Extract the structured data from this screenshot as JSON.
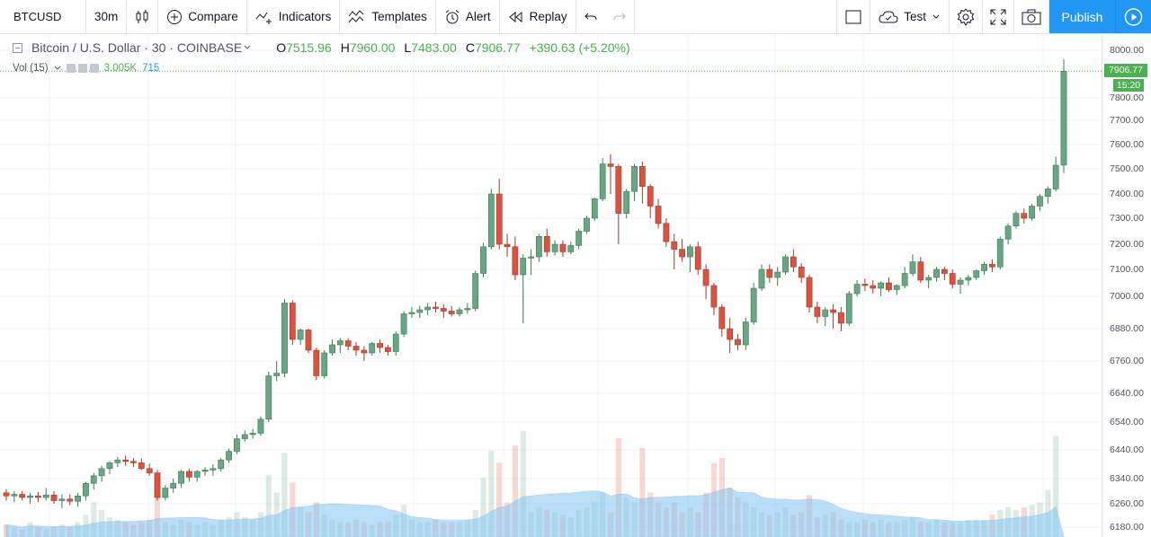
{
  "toolbar": {
    "symbol": "BTCUSD",
    "interval": "30m",
    "compare": "Compare",
    "indicators": "Indicators",
    "templates": "Templates",
    "alert": "Alert",
    "replay": "Replay",
    "layout_name": "Test",
    "publish": "Publish"
  },
  "legend": {
    "title": "Bitcoin / U.S. Dollar · 30 · COINBASE",
    "open_key": "O",
    "open": "7515.96",
    "high_key": "H",
    "high": "7960.00",
    "low_key": "L",
    "low": "7483.00",
    "close_key": "C",
    "close": "7906.77",
    "change": "+390.63 (+5.20%)"
  },
  "volume_legend": {
    "name": "Vol (15)",
    "value": "3.005K",
    "ma": "715"
  },
  "price_axis": {
    "ticks": [
      "8000.00",
      "7900.00",
      "7800.00",
      "7700.00",
      "7600.00",
      "7500.00",
      "7400.00",
      "7300.00",
      "7200.00",
      "7100.00",
      "7000.00",
      "6880.00",
      "6760.00",
      "6640.00",
      "6540.00",
      "6440.00",
      "6340.00",
      "6260.00",
      "6180.00"
    ],
    "last_price": "7906.77",
    "countdown": "15:20"
  },
  "colors": {
    "up": "#6ba583",
    "down": "#d75442",
    "volume_ma": "#85c6f3",
    "grid": "#f0f3fa",
    "accent": "#2196f3"
  },
  "chart_data": {
    "type": "candlestick",
    "title": "Bitcoin / U.S. Dollar · 30 · COINBASE",
    "ylim": [
      6180,
      8000
    ],
    "candles": [
      [
        6295,
        6305,
        6270,
        6285
      ],
      [
        6285,
        6300,
        6265,
        6290
      ],
      [
        6290,
        6300,
        6270,
        6280
      ],
      [
        6280,
        6295,
        6260,
        6285
      ],
      [
        6285,
        6298,
        6265,
        6280
      ],
      [
        6280,
        6310,
        6270,
        6288
      ],
      [
        6288,
        6300,
        6260,
        6270
      ],
      [
        6270,
        6290,
        6245,
        6275
      ],
      [
        6275,
        6290,
        6255,
        6268
      ],
      [
        6268,
        6295,
        6250,
        6285
      ],
      [
        6285,
        6330,
        6270,
        6325
      ],
      [
        6325,
        6360,
        6305,
        6350
      ],
      [
        6350,
        6385,
        6330,
        6375
      ],
      [
        6375,
        6400,
        6355,
        6395
      ],
      [
        6395,
        6415,
        6380,
        6405
      ],
      [
        6405,
        6420,
        6385,
        6400
      ],
      [
        6400,
        6412,
        6380,
        6395
      ],
      [
        6395,
        6410,
        6370,
        6375
      ],
      [
        6375,
        6392,
        6350,
        6360
      ],
      [
        6360,
        6370,
        6270,
        6280
      ],
      [
        6280,
        6320,
        6270,
        6310
      ],
      [
        6310,
        6340,
        6295,
        6325
      ],
      [
        6325,
        6370,
        6310,
        6365
      ],
      [
        6365,
        6375,
        6330,
        6345
      ],
      [
        6345,
        6370,
        6330,
        6365
      ],
      [
        6365,
        6380,
        6350,
        6370
      ],
      [
        6370,
        6390,
        6350,
        6375
      ],
      [
        6375,
        6412,
        6365,
        6405
      ],
      [
        6405,
        6445,
        6395,
        6435
      ],
      [
        6435,
        6495,
        6425,
        6480
      ],
      [
        6480,
        6510,
        6470,
        6495
      ],
      [
        6495,
        6515,
        6480,
        6500
      ],
      [
        6500,
        6560,
        6490,
        6550
      ],
      [
        6550,
        6720,
        6540,
        6705
      ],
      [
        6705,
        6760,
        6685,
        6715
      ],
      [
        6715,
        6990,
        6700,
        6975
      ],
      [
        6975,
        6985,
        6820,
        6840
      ],
      [
        6840,
        6880,
        6820,
        6875
      ],
      [
        6875,
        6880,
        6790,
        6800
      ],
      [
        6800,
        6810,
        6690,
        6705
      ],
      [
        6705,
        6800,
        6695,
        6790
      ],
      [
        6790,
        6840,
        6780,
        6820
      ],
      [
        6820,
        6845,
        6790,
        6835
      ],
      [
        6835,
        6845,
        6800,
        6815
      ],
      [
        6815,
        6830,
        6780,
        6800
      ],
      [
        6800,
        6815,
        6760,
        6790
      ],
      [
        6790,
        6830,
        6780,
        6825
      ],
      [
        6825,
        6840,
        6790,
        6810
      ],
      [
        6810,
        6820,
        6780,
        6795
      ],
      [
        6795,
        6870,
        6780,
        6860
      ],
      [
        6860,
        6945,
        6850,
        6935
      ],
      [
        6935,
        6960,
        6920,
        6940
      ],
      [
        6940,
        6965,
        6920,
        6950
      ],
      [
        6950,
        6975,
        6930,
        6960
      ],
      [
        6960,
        6980,
        6940,
        6955
      ],
      [
        6955,
        6970,
        6920,
        6945
      ],
      [
        6945,
        6965,
        6925,
        6935
      ],
      [
        6935,
        6960,
        6925,
        6950
      ],
      [
        6950,
        6975,
        6935,
        6955
      ],
      [
        6955,
        7095,
        6945,
        7085
      ],
      [
        7085,
        7205,
        7070,
        7190
      ],
      [
        7190,
        7420,
        7180,
        7400
      ],
      [
        7400,
        7460,
        7180,
        7200
      ],
      [
        7200,
        7240,
        7150,
        7190
      ],
      [
        7190,
        7230,
        7060,
        7080
      ],
      [
        7080,
        7160,
        6900,
        7145
      ],
      [
        7145,
        7180,
        7080,
        7150
      ],
      [
        7150,
        7240,
        7130,
        7230
      ],
      [
        7230,
        7260,
        7150,
        7170
      ],
      [
        7170,
        7215,
        7155,
        7200
      ],
      [
        7200,
        7215,
        7150,
        7170
      ],
      [
        7170,
        7210,
        7160,
        7195
      ],
      [
        7195,
        7260,
        7180,
        7250
      ],
      [
        7250,
        7310,
        7240,
        7300
      ],
      [
        7300,
        7385,
        7290,
        7380
      ],
      [
        7380,
        7545,
        7370,
        7520
      ],
      [
        7520,
        7560,
        7400,
        7510
      ],
      [
        7510,
        7520,
        7200,
        7320
      ],
      [
        7320,
        7420,
        7300,
        7410
      ],
      [
        7410,
        7520,
        7370,
        7510
      ],
      [
        7510,
        7530,
        7360,
        7430
      ],
      [
        7430,
        7440,
        7300,
        7350
      ],
      [
        7350,
        7380,
        7260,
        7280
      ],
      [
        7280,
        7300,
        7190,
        7210
      ],
      [
        7210,
        7240,
        7100,
        7180
      ],
      [
        7180,
        7220,
        7130,
        7150
      ],
      [
        7150,
        7200,
        7090,
        7190
      ],
      [
        7190,
        7210,
        7080,
        7100
      ],
      [
        7100,
        7120,
        6990,
        7040
      ],
      [
        7040,
        7050,
        6930,
        6960
      ],
      [
        6960,
        6970,
        6850,
        6880
      ],
      [
        6880,
        6920,
        6790,
        6840
      ],
      [
        6840,
        6860,
        6800,
        6820
      ],
      [
        6820,
        6920,
        6800,
        6905
      ],
      [
        6905,
        7050,
        6895,
        7030
      ],
      [
        7030,
        7120,
        7020,
        7100
      ],
      [
        7100,
        7120,
        7050,
        7070
      ],
      [
        7070,
        7110,
        7040,
        7090
      ],
      [
        7090,
        7160,
        7080,
        7150
      ],
      [
        7150,
        7180,
        7090,
        7110
      ],
      [
        7110,
        7125,
        7050,
        7070
      ],
      [
        7070,
        7080,
        6940,
        6960
      ],
      [
        6960,
        6980,
        6900,
        6925
      ],
      [
        6925,
        6960,
        6890,
        6950
      ],
      [
        6950,
        6970,
        6880,
        6940
      ],
      [
        6940,
        6960,
        6870,
        6900
      ],
      [
        6900,
        7020,
        6890,
        7010
      ],
      [
        7010,
        7060,
        7000,
        7045
      ],
      [
        7045,
        7065,
        7020,
        7040
      ],
      [
        7040,
        7060,
        7010,
        7030
      ],
      [
        7030,
        7055,
        7000,
        7050
      ],
      [
        7050,
        7070,
        7015,
        7025
      ],
      [
        7025,
        7045,
        7005,
        7040
      ],
      [
        7040,
        7110,
        7030,
        7085
      ],
      [
        7085,
        7160,
        7075,
        7130
      ],
      [
        7130,
        7150,
        7050,
        7060
      ],
      [
        7060,
        7080,
        7030,
        7070
      ],
      [
        7070,
        7110,
        7055,
        7100
      ],
      [
        7100,
        7110,
        7060,
        7085
      ],
      [
        7085,
        7100,
        7030,
        7045
      ],
      [
        7045,
        7070,
        7010,
        7060
      ],
      [
        7060,
        7080,
        7040,
        7070
      ],
      [
        7070,
        7100,
        7060,
        7095
      ],
      [
        7095,
        7130,
        7080,
        7120
      ],
      [
        7120,
        7140,
        7090,
        7110
      ],
      [
        7110,
        7230,
        7100,
        7220
      ],
      [
        7220,
        7280,
        7200,
        7270
      ],
      [
        7270,
        7330,
        7260,
        7320
      ],
      [
        7320,
        7340,
        7280,
        7300
      ],
      [
        7300,
        7360,
        7290,
        7350
      ],
      [
        7350,
        7400,
        7330,
        7390
      ],
      [
        7390,
        7430,
        7360,
        7420
      ],
      [
        7420,
        7550,
        7410,
        7515
      ],
      [
        7515,
        7960,
        7483,
        7906.77
      ]
    ],
    "volume": [
      0.25,
      0.2,
      0.15,
      0.3,
      0.2,
      0.15,
      0.2,
      0.25,
      0.2,
      0.3,
      0.45,
      0.7,
      0.55,
      0.4,
      0.35,
      0.3,
      0.25,
      0.3,
      0.35,
      0.8,
      0.3,
      0.25,
      0.35,
      0.3,
      0.25,
      0.3,
      0.25,
      0.35,
      0.4,
      0.5,
      0.4,
      0.35,
      0.5,
      1.25,
      0.9,
      1.7,
      1.1,
      0.6,
      0.5,
      0.7,
      0.45,
      0.35,
      0.3,
      0.3,
      0.35,
      0.3,
      0.25,
      0.3,
      0.3,
      0.45,
      0.65,
      0.35,
      0.3,
      0.3,
      0.35,
      0.3,
      0.3,
      0.3,
      0.35,
      0.55,
      1.2,
      1.75,
      1.5,
      0.7,
      1.85,
      2.15,
      0.5,
      0.6,
      0.55,
      0.5,
      0.45,
      0.4,
      0.55,
      0.6,
      0.7,
      0.9,
      0.5,
      2.0,
      0.8,
      0.7,
      1.8,
      0.9,
      0.7,
      0.6,
      0.7,
      0.5,
      0.6,
      0.5,
      0.9,
      1.5,
      1.6,
      1.0,
      0.8,
      0.7,
      0.6,
      0.5,
      0.45,
      0.5,
      0.6,
      0.45,
      0.5,
      0.85,
      0.4,
      0.45,
      0.5,
      0.35,
      0.3,
      0.3,
      0.35,
      0.3,
      0.35,
      0.3,
      0.3,
      0.35,
      0.4,
      0.3,
      0.3,
      0.35,
      0.3,
      0.3,
      0.3,
      0.35,
      0.35,
      0.35,
      0.45,
      0.55,
      0.6,
      0.55,
      0.6,
      0.65,
      0.7,
      0.95,
      2.05
    ]
  }
}
